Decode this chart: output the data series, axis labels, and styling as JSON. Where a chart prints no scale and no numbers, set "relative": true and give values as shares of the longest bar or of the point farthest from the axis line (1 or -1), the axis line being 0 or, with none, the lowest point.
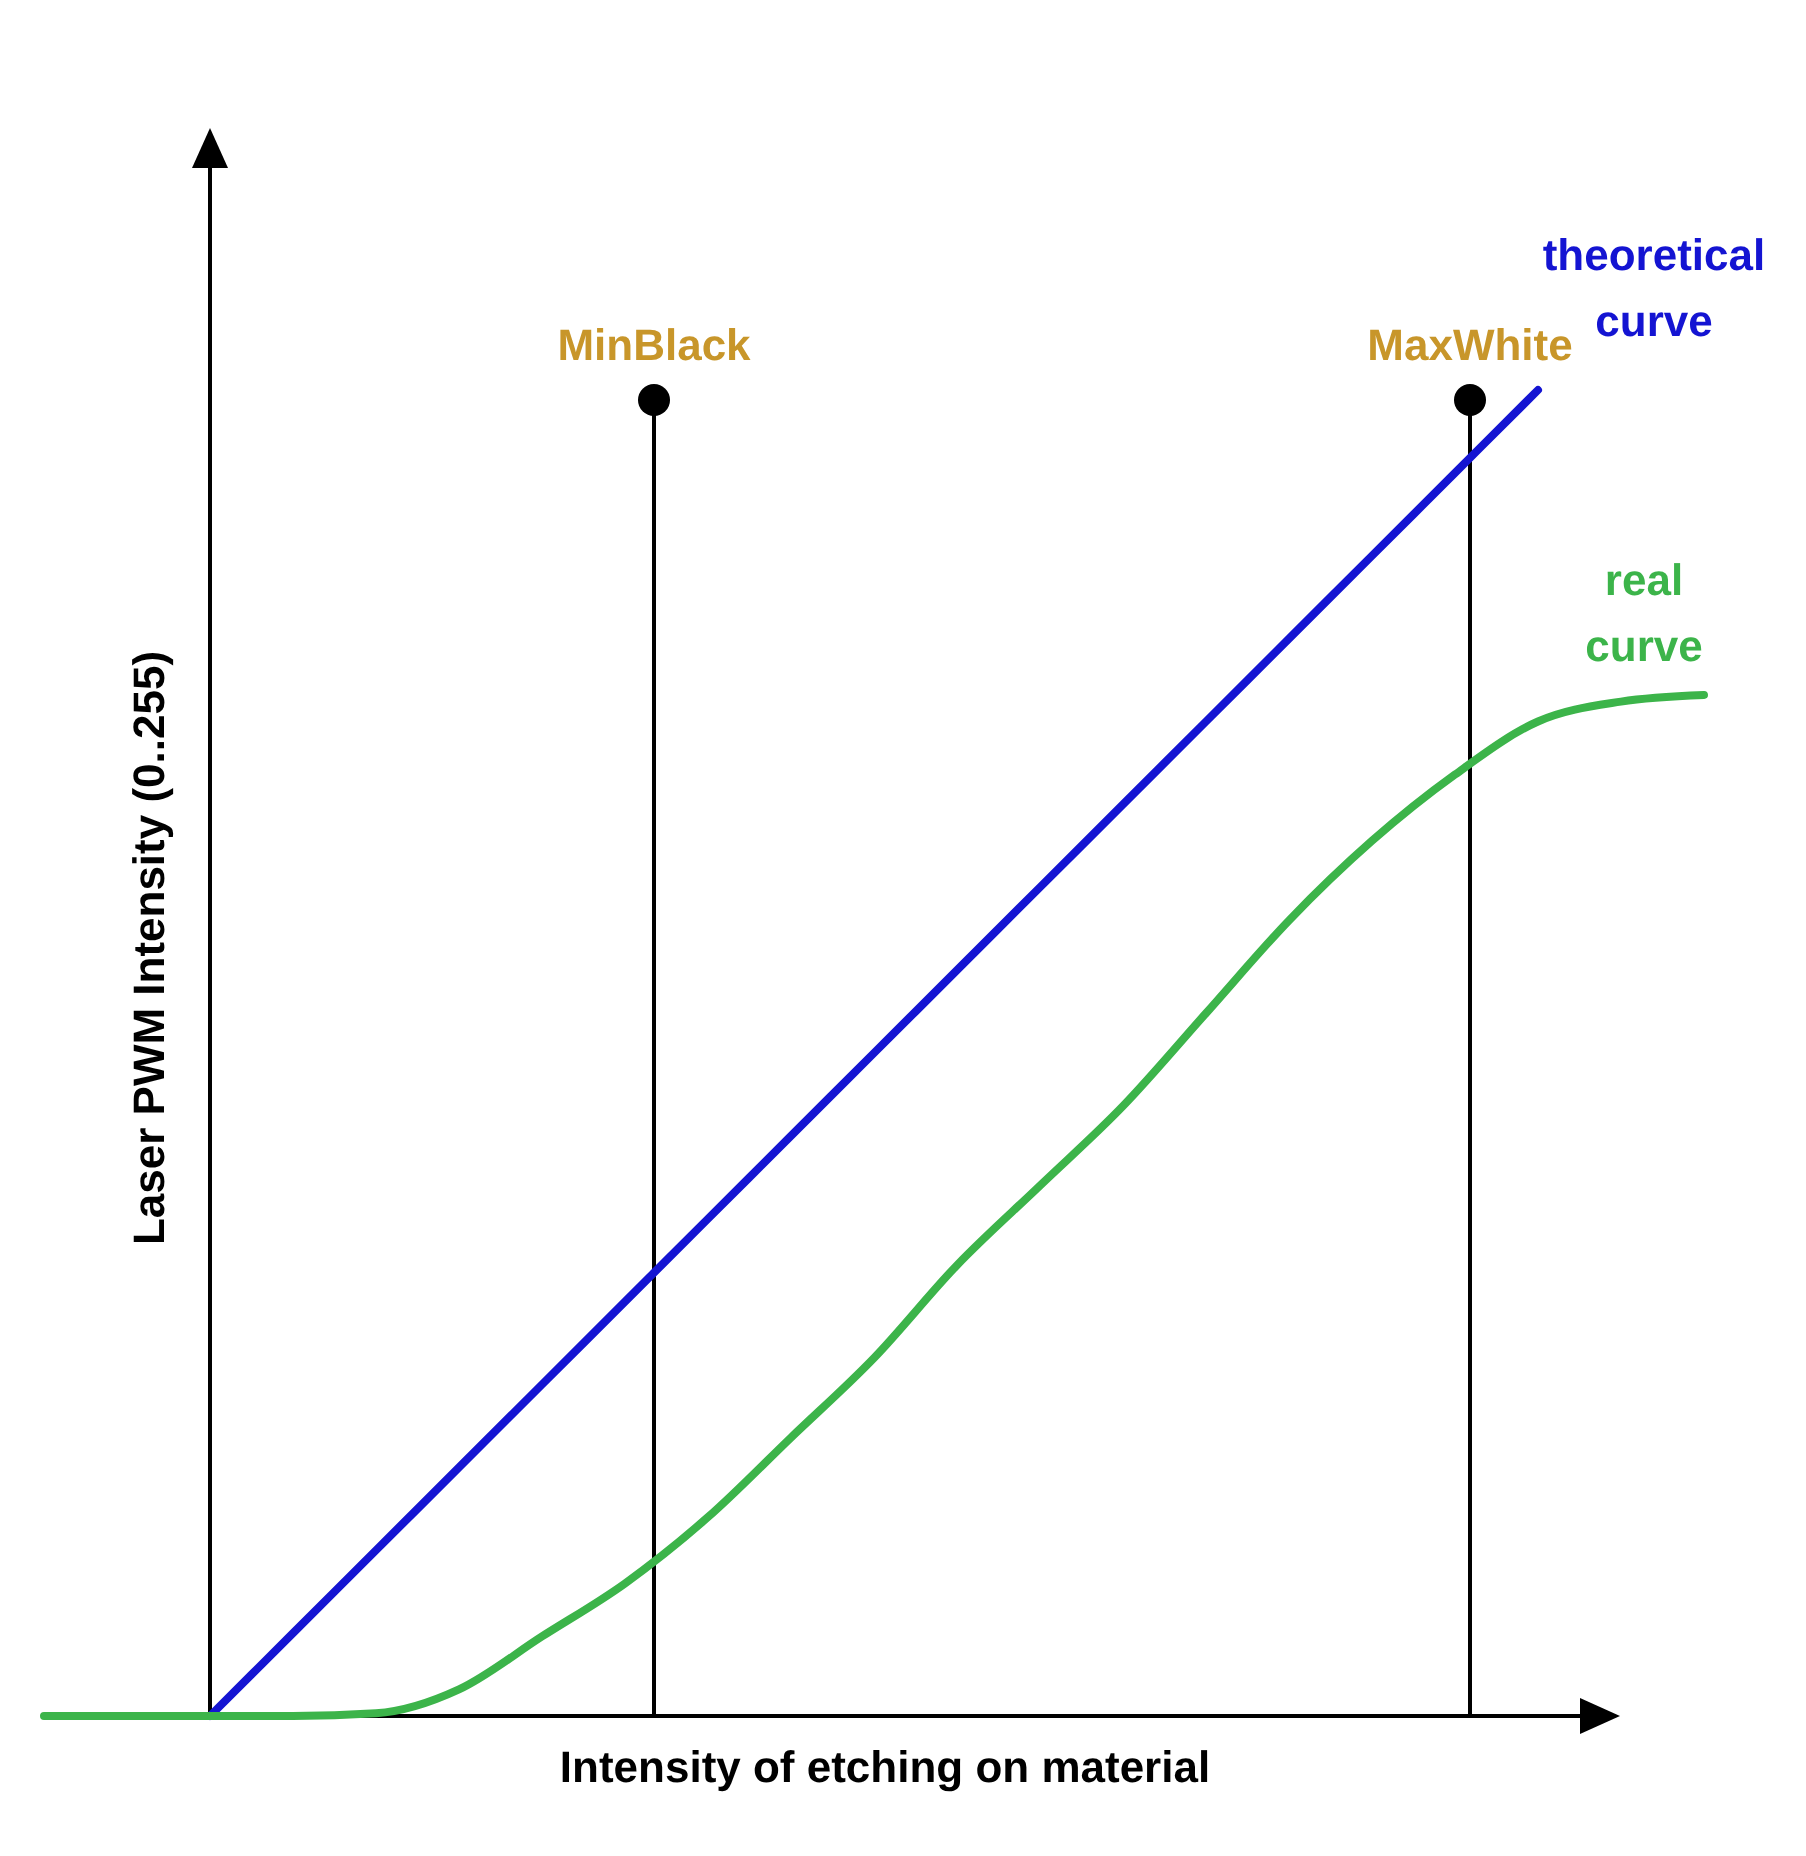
{
  "chart_data": {
    "type": "line",
    "xlabel": "Intensity of etching on material",
    "ylabel": "Laser PWM Intensity (0..255)",
    "relative": true,
    "marker": "none",
    "line_style": "solid",
    "categories": [
      null,
      null,
      null,
      null,
      null,
      null,
      null,
      null,
      null,
      null,
      null,
      null,
      null,
      null,
      null,
      null,
      null,
      null,
      null,
      null,
      null
    ],
    "series": [
      {
        "name": "theoretical curve",
        "color": "#1414d2",
        "values": [
          null,
          null,
          0,
          0.0625,
          0.125,
          0.1875,
          0.25,
          0.3125,
          0.375,
          0.4375,
          0.5,
          0.5625,
          0.625,
          0.6875,
          0.75,
          0.8125,
          0.875,
          0.9375,
          1,
          null,
          null
        ]
      },
      {
        "name": "real curve",
        "color": "#3cb44a",
        "values": [
          0,
          0,
          0,
          0,
          0.002,
          0.02,
          0.06,
          0.1,
          0.15,
          0.21,
          0.27,
          0.34,
          0.4,
          0.46,
          0.53,
          0.6,
          0.66,
          0.71,
          0.75,
          0.765,
          0.77
        ]
      }
    ],
    "annotations": [
      "MinBlack",
      "MaxWhite"
    ]
  }
}
